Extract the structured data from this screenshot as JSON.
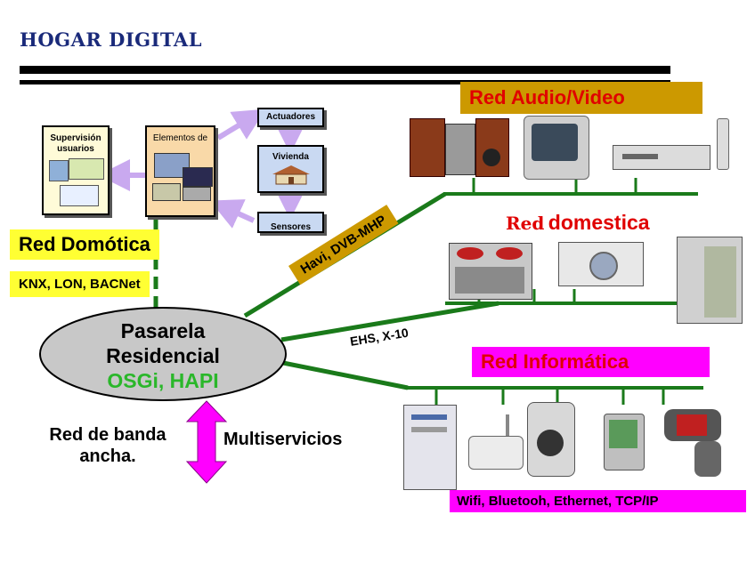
{
  "title": "HOGAR DIGITAL",
  "domotica": {
    "supervision_label": "Supervisión usuarios",
    "elementos_label": "Elementos de",
    "actuadores_label": "Actuadores",
    "vivienda_label": "Vivienda",
    "sensores_label": "Sensores",
    "red_label": "Red Domótica",
    "protocols": "KNX, LON, BACNet"
  },
  "gateway": {
    "line1": "Pasarela",
    "line2": "Residencial",
    "line3": "OSGi, HAPI"
  },
  "audio_video": {
    "label": "Red Audio/Video",
    "link_label": "Havi, DVB-MHP"
  },
  "domestica": {
    "label_small": "Red",
    "label_big": "domestica",
    "link_label": "EHS, X-10"
  },
  "informatica": {
    "label": "Red Informática",
    "protocols": "Wifi, Bluetooh, Ethernet, TCP/IP"
  },
  "broadband": {
    "line1": "Red de banda",
    "line2": "ancha.",
    "multiservice": "Multiservicios"
  },
  "colors": {
    "green_line": "#1a7a1a",
    "yellow": "#ffff33",
    "tan": "#cc9900",
    "magenta": "#ff00ff",
    "lavender": "#c9a9ef",
    "gateway_fill": "#c8c8c8",
    "osgi_green": "#2ab72a",
    "red": "#e00000"
  }
}
